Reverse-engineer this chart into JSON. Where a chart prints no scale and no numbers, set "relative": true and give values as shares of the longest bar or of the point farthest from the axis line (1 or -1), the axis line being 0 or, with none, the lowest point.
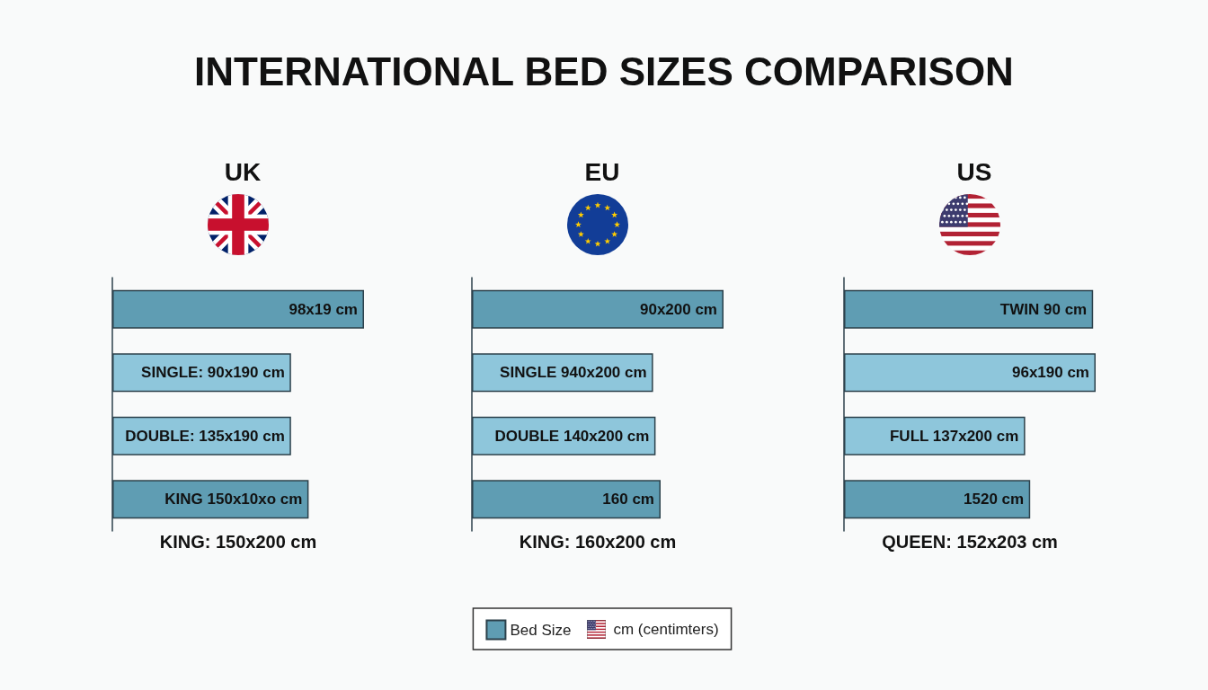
{
  "chart_data": [
    {
      "type": "other",
      "title": "INTERNATIONAL BED SIZES COMPARISON"
    },
    {
      "type": "bar",
      "orientation": "horizontal",
      "relative": true,
      "title": "UK",
      "categories": [
        "98x19 cm",
        "SINGLE: 90x190 cm",
        "DOUBLE: 135x190 cm",
        "KING 150x10xo cm"
      ],
      "values": [
        1,
        0.71,
        0.71,
        0.78
      ],
      "colors": [
        "#5f9db3",
        "#8ec6db",
        "#8ec6db",
        "#5f9db3"
      ],
      "annotations": [
        "KING: 150x200 cm"
      ]
    },
    {
      "type": "bar",
      "orientation": "horizontal",
      "relative": true,
      "title": "EU",
      "categories": [
        "90x200 cm",
        "SINGLE 940x200 cm",
        "DOUBLE 140x200 cm",
        "160 cm"
      ],
      "series": [
        {
          "name": "Bed Size",
          "color": "#5f9db3",
          "colors": [
            "#5f9db3",
            "#8ec6db",
            "#8ec6db",
            "#5f9db3"
          ],
          "values": [
            1,
            0.72,
            0.73,
            0.75
          ]
        }
      ],
      "legend": "bottom",
      "annotations": [
        "KING: 160x200 cm",
        "cm (centimters)"
      ]
    },
    {
      "type": "bar",
      "orientation": "horizontal",
      "relative": true,
      "title": "US",
      "categories": [
        "TWIN 90 cm",
        "96x190 cm",
        "FULL 137x200 cm",
        "1520 cm"
      ],
      "values": [
        0.99,
        1,
        0.72,
        0.74
      ],
      "colors": [
        "#5f9db3",
        "#8ec6db",
        "#8ec6db",
        "#5f9db3"
      ],
      "annotations": [
        "QUEEN: 152x203 cm"
      ]
    }
  ]
}
